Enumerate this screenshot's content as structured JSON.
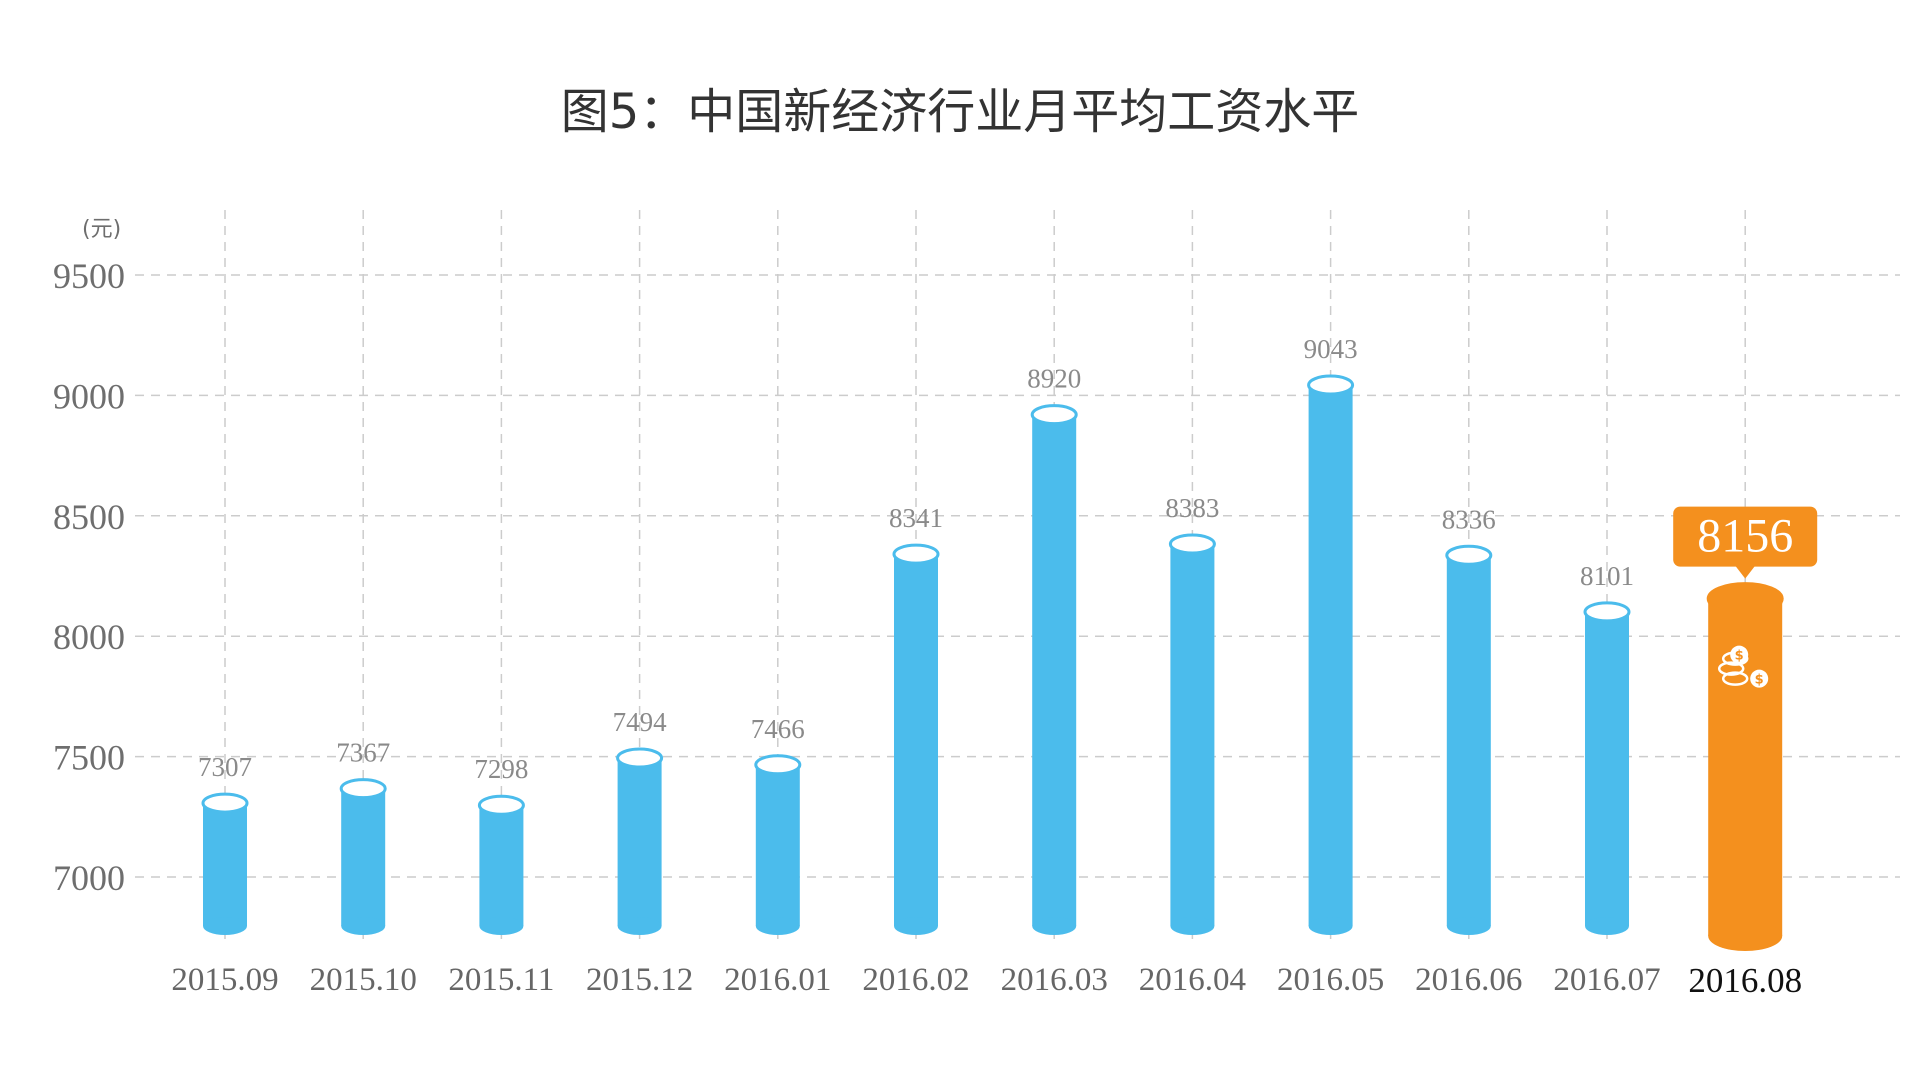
{
  "title": "图5：中国新经济行业月平均工资水平",
  "colors": {
    "bar": "#4bbcec",
    "bar_top": "#ffffff",
    "highlight": "#f4901e",
    "grid": "#cccccc"
  },
  "highlight_icon": "coins-dollar-icon",
  "chart_data": {
    "type": "bar",
    "title": "图5：中国新经济行业月平均工资水平",
    "ylabel": "(元)",
    "xlabel": "",
    "categories": [
      "2015.09",
      "2015.10",
      "2015.11",
      "2015.12",
      "2016.01",
      "2016.02",
      "2016.03",
      "2016.04",
      "2016.05",
      "2016.06",
      "2016.07",
      "2016.08"
    ],
    "values": [
      7307,
      7367,
      7298,
      7494,
      7466,
      8341,
      8920,
      8383,
      9043,
      8336,
      8101,
      8156
    ],
    "highlight_index": 11,
    "yticks": [
      7000,
      7500,
      8000,
      8500,
      9000,
      9500
    ],
    "ylim": [
      6750,
      9600
    ],
    "grid": true
  }
}
